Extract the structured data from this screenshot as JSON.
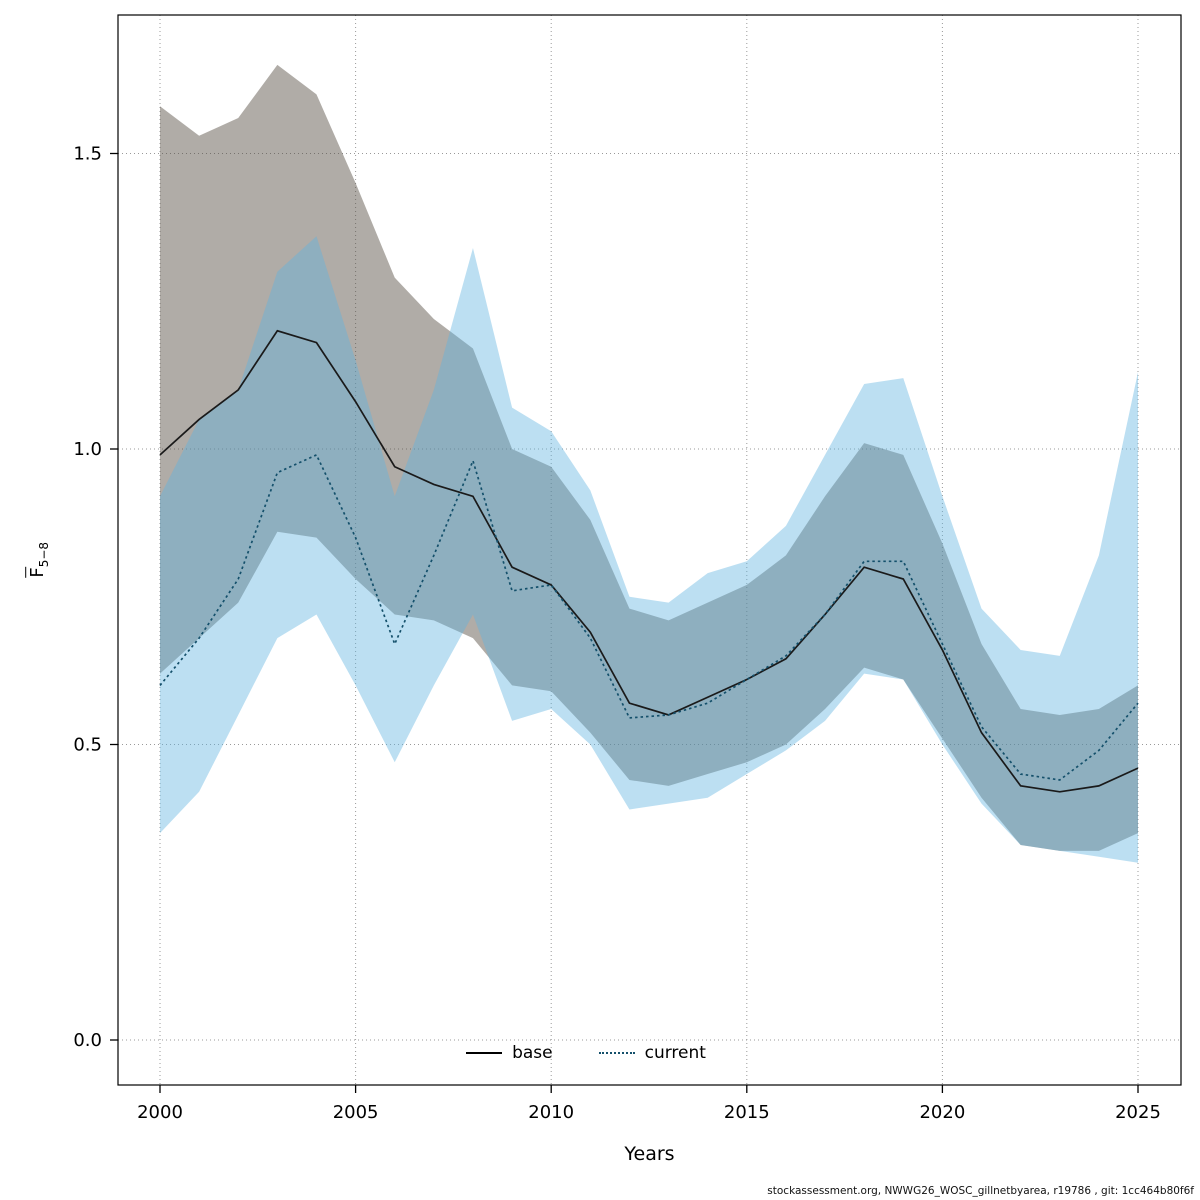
{
  "chart_data": {
    "type": "line",
    "title": "",
    "xlabel": "Years",
    "ylabel": "F̅5−8",
    "ylabel_parts": {
      "main": "F",
      "sub": "5−8"
    },
    "xlim": [
      2000,
      2025
    ],
    "ylim": [
      -0.07,
      1.73
    ],
    "grid": true,
    "legend_position": "bottom-center-inside",
    "x": [
      2000,
      2001,
      2002,
      2003,
      2004,
      2005,
      2006,
      2007,
      2008,
      2009,
      2010,
      2011,
      2012,
      2013,
      2014,
      2015,
      2016,
      2017,
      2018,
      2019,
      2020,
      2021,
      2022,
      2023,
      2024,
      2025
    ],
    "xticks": [
      2000,
      2005,
      2010,
      2015,
      2020,
      2025
    ],
    "xtick_labels": [
      "2000",
      "2005",
      "2010",
      "2015",
      "2020",
      "2025"
    ],
    "ytick_values": [
      0.0,
      0.5,
      1.0,
      1.5
    ],
    "ytick_labels": [
      "0.0",
      "0.5",
      "1.0",
      "1.5"
    ],
    "series": [
      {
        "name": "base",
        "style": "solid",
        "color": "#1a1a1a",
        "band_color": "rgba(80,70,60,0.45)",
        "values": [
          0.99,
          1.05,
          1.1,
          1.2,
          1.18,
          1.08,
          0.97,
          0.94,
          0.92,
          0.8,
          0.77,
          0.69,
          0.57,
          0.55,
          0.58,
          0.61,
          0.645,
          0.72,
          0.8,
          0.78,
          0.66,
          0.52,
          0.43,
          0.42,
          0.43,
          0.46
        ],
        "ci_upper": [
          1.58,
          1.53,
          1.56,
          1.65,
          1.6,
          1.45,
          1.29,
          1.22,
          1.17,
          1.0,
          0.97,
          0.88,
          0.73,
          0.71,
          0.74,
          0.77,
          0.82,
          0.92,
          1.01,
          0.99,
          0.84,
          0.67,
          0.56,
          0.55,
          0.56,
          0.6
        ],
        "ci_lower": [
          0.62,
          0.68,
          0.74,
          0.86,
          0.85,
          0.78,
          0.72,
          0.71,
          0.68,
          0.6,
          0.59,
          0.52,
          0.44,
          0.43,
          0.45,
          0.47,
          0.5,
          0.56,
          0.63,
          0.61,
          0.51,
          0.41,
          0.33,
          0.32,
          0.32,
          0.35
        ]
      },
      {
        "name": "current",
        "style": "dotted",
        "color": "#14506b",
        "band_color": "rgba(95,178,223,0.42)",
        "values": [
          0.6,
          0.68,
          0.78,
          0.96,
          0.99,
          0.85,
          0.67,
          0.82,
          0.98,
          0.76,
          0.77,
          0.68,
          0.545,
          0.55,
          0.57,
          0.61,
          0.65,
          0.72,
          0.81,
          0.81,
          0.67,
          0.53,
          0.45,
          0.44,
          0.49,
          0.57
        ],
        "ci_upper": [
          0.92,
          1.05,
          1.1,
          1.3,
          1.36,
          1.15,
          0.92,
          1.1,
          1.34,
          1.07,
          1.03,
          0.93,
          0.75,
          0.74,
          0.79,
          0.81,
          0.87,
          0.99,
          1.11,
          1.12,
          0.92,
          0.73,
          0.66,
          0.65,
          0.82,
          1.13
        ],
        "ci_lower": [
          0.35,
          0.42,
          0.55,
          0.68,
          0.72,
          0.6,
          0.47,
          0.6,
          0.72,
          0.54,
          0.56,
          0.5,
          0.39,
          0.4,
          0.41,
          0.45,
          0.49,
          0.54,
          0.62,
          0.61,
          0.5,
          0.4,
          0.33,
          0.32,
          0.31,
          0.3
        ]
      }
    ],
    "legend": [
      {
        "label": "base"
      },
      {
        "label": "current"
      }
    ]
  },
  "footer": {
    "text": "stockassessment.org, NWWG26_WOSC_gillnetbyarea, r19786 , git: 1cc464b80f6f"
  }
}
